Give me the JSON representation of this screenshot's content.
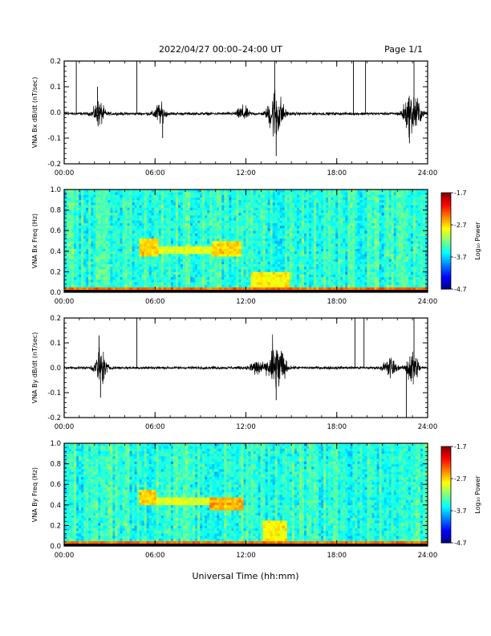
{
  "header": {
    "date_range": "2022/04/27  00:00–24:00 UT",
    "page": "Page 1/1"
  },
  "footer": {
    "xlabel": "Universal Time (hh:mm)"
  },
  "colorbar": {
    "label": "Log₁₀ Power",
    "ticks": [
      "-1.7",
      "-2.7",
      "-3.7",
      "-4.7"
    ],
    "range": [
      -4.7,
      -1.7
    ]
  },
  "chart_data": [
    {
      "type": "line",
      "ylabel": "VNA Bx dB/dt (nT/sec)",
      "ylim": [
        -0.2,
        0.2
      ],
      "yticks": [
        "0.2",
        "0.1",
        "0.0",
        "-0.1",
        "-0.2"
      ],
      "xlim": [
        0,
        24
      ],
      "xticks": [
        "00:00",
        "06:00",
        "12:00",
        "18:00",
        "24:00"
      ],
      "baseline": -0.005,
      "noise_amp": 0.006,
      "bursts": [
        {
          "t": 2.3,
          "amp": 0.05
        },
        {
          "t": 6.3,
          "amp": 0.04
        },
        {
          "t": 11.8,
          "amp": 0.03
        },
        {
          "t": 13.8,
          "amp": 0.08
        },
        {
          "t": 14.2,
          "amp": 0.06
        },
        {
          "t": 22.7,
          "amp": 0.06
        },
        {
          "t": 23.2,
          "amp": 0.07
        }
      ],
      "spikes": [
        {
          "t": 0.8,
          "y": 0.2
        },
        {
          "t": 2.2,
          "y": 0.1
        },
        {
          "t": 4.8,
          "y": 0.2
        },
        {
          "t": 6.5,
          "y": -0.1
        },
        {
          "t": 13.9,
          "y": 0.2
        },
        {
          "t": 14.0,
          "y": -0.17
        },
        {
          "t": 19.1,
          "y": 0.2
        },
        {
          "t": 19.9,
          "y": 0.2
        },
        {
          "t": 22.8,
          "y": -0.12
        },
        {
          "t": 23.1,
          "y": 0.2
        }
      ]
    },
    {
      "type": "heatmap",
      "ylabel": "VNA Bx Freq (Hz)",
      "ylim": [
        0.0,
        1.0
      ],
      "yticks": [
        "1.0",
        "0.8",
        "0.6",
        "0.4",
        "0.2",
        "0.0"
      ],
      "xlim": [
        0,
        24
      ],
      "xticks": [
        "00:00",
        "06:00",
        "12:00",
        "18:00",
        "24:00"
      ],
      "zlim": [
        -4.7,
        -1.7
      ],
      "background_level": -3.45,
      "features": [
        {
          "t0": 5.0,
          "t1": 6.2,
          "f0": 0.36,
          "f1": 0.52,
          "level": -2.7
        },
        {
          "t0": 6.2,
          "t1": 9.7,
          "f0": 0.38,
          "f1": 0.46,
          "level": -2.9
        },
        {
          "t0": 9.7,
          "t1": 11.7,
          "f0": 0.34,
          "f1": 0.5,
          "level": -2.7
        },
        {
          "t0": 12.3,
          "t1": 14.8,
          "f0": 0.0,
          "f1": 0.2,
          "level": -2.8
        },
        {
          "t0": 0.0,
          "t1": 24.0,
          "f0": 0.0,
          "f1": 0.05,
          "level": -2.4
        }
      ]
    },
    {
      "type": "line",
      "ylabel": "VNA By dB/dt (nT/sec)",
      "ylim": [
        -0.2,
        0.2
      ],
      "yticks": [
        "0.2",
        "0.1",
        "0.0",
        "-0.1",
        "-0.2"
      ],
      "xlim": [
        0,
        24
      ],
      "xticks": [
        "00:00",
        "06:00",
        "12:00",
        "18:00",
        "24:00"
      ],
      "baseline": 0.0,
      "noise_amp": 0.006,
      "bursts": [
        {
          "t": 2.4,
          "amp": 0.08
        },
        {
          "t": 12.7,
          "amp": 0.04
        },
        {
          "t": 13.8,
          "amp": 0.1
        },
        {
          "t": 14.3,
          "amp": 0.07
        },
        {
          "t": 21.5,
          "amp": 0.05
        },
        {
          "t": 23.0,
          "amp": 0.08
        }
      ],
      "spikes": [
        {
          "t": 2.3,
          "y": 0.13
        },
        {
          "t": 2.4,
          "y": -0.12
        },
        {
          "t": 4.8,
          "y": 0.2
        },
        {
          "t": 14.0,
          "y": -0.13
        },
        {
          "t": 19.2,
          "y": 0.2
        },
        {
          "t": 19.8,
          "y": 0.2
        },
        {
          "t": 22.6,
          "y": -0.2
        },
        {
          "t": 23.1,
          "y": 0.2
        }
      ]
    },
    {
      "type": "heatmap",
      "ylabel": "VNA By Freq (Hz)",
      "ylim": [
        0.0,
        1.0
      ],
      "yticks": [
        "1.0",
        "0.8",
        "0.6",
        "0.4",
        "0.2",
        "0.0"
      ],
      "xlim": [
        0,
        24
      ],
      "xticks": [
        "00:00",
        "06:00",
        "12:00",
        "18:00",
        "24:00"
      ],
      "zlim": [
        -4.7,
        -1.7
      ],
      "background_level": -3.45,
      "features": [
        {
          "t0": 5.0,
          "t1": 6.0,
          "f0": 0.4,
          "f1": 0.55,
          "level": -2.7
        },
        {
          "t0": 6.0,
          "t1": 9.6,
          "f0": 0.4,
          "f1": 0.48,
          "level": -2.9
        },
        {
          "t0": 9.6,
          "t1": 11.8,
          "f0": 0.36,
          "f1": 0.48,
          "level": -2.6
        },
        {
          "t0": 13.2,
          "t1": 14.7,
          "f0": 0.0,
          "f1": 0.25,
          "level": -2.8
        },
        {
          "t0": 0.0,
          "t1": 24.0,
          "f0": 0.0,
          "f1": 0.05,
          "level": -2.4
        }
      ]
    }
  ]
}
